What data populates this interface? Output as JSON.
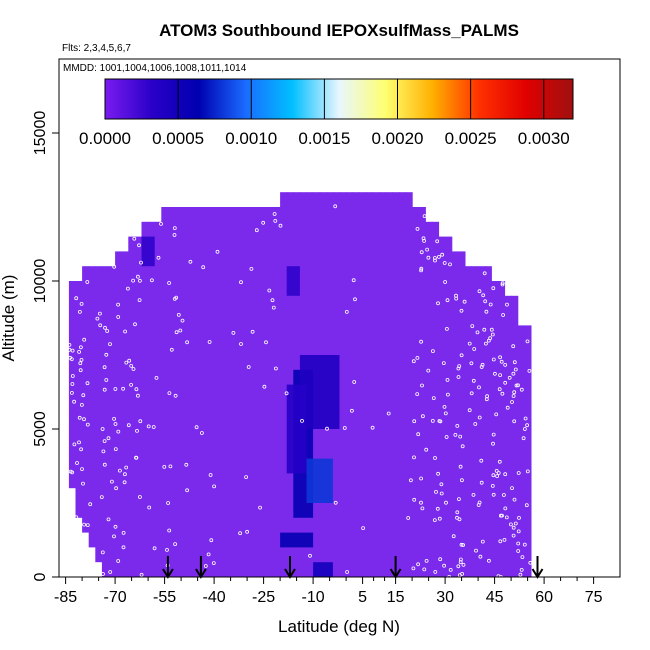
{
  "chart_data": {
    "type": "heatmap",
    "title": "ATOM3 Southbound IEPOXsulfMass_PALMS",
    "subtitle_flights": "Flts: 2,3,4,5,6,7",
    "subtitle_dates": "MMDD: 1001,1004,1006,1008,1011,1014",
    "xlabel": "Latitude (deg N)",
    "ylabel": "Altitude (m)",
    "xlim": [
      -87,
      83
    ],
    "ylim": [
      0,
      17500
    ],
    "x_ticks": [
      -85,
      -70,
      -55,
      -40,
      -25,
      -10,
      5,
      15,
      30,
      45,
      60,
      75
    ],
    "x_tick_labels": [
      "-85",
      "-70",
      "-55",
      "-40",
      "-25",
      "-10",
      "5",
      "15",
      "30",
      "45",
      "60",
      "75"
    ],
    "y_ticks": [
      0,
      5000,
      10000,
      15000
    ],
    "y_tick_labels": [
      "0",
      "5000",
      "10000",
      "15000"
    ],
    "colorbar": {
      "range": [
        0,
        0.0032
      ],
      "ticks": [
        0,
        0.0005,
        0.001,
        0.0015,
        0.002,
        0.0025,
        0.003
      ],
      "tick_labels": [
        "0.0000",
        "0.0005",
        "0.0010",
        "0.0015",
        "0.0020",
        "0.0025",
        "0.0030"
      ],
      "colors": [
        "#7a1cf0",
        "#2a00c8",
        "#0000b0",
        "#1a6bff",
        "#00bfff",
        "#e8f6ff",
        "#ffff70",
        "#ffb000",
        "#ff3000",
        "#e00000",
        "#a01010"
      ],
      "placement": "top, inside plot"
    },
    "background_value_color": "#7b2aec",
    "column_top_altitudes": [
      {
        "lat_from": -84,
        "lat_to": -80,
        "alt_top": 10000
      },
      {
        "lat_from": -80,
        "lat_to": -74,
        "alt_top": 10500
      },
      {
        "lat_from": -74,
        "lat_to": -70,
        "alt_top": 10500
      },
      {
        "lat_from": -70,
        "lat_to": -66,
        "alt_top": 11000
      },
      {
        "lat_from": -66,
        "lat_to": -62,
        "alt_top": 11500
      },
      {
        "lat_from": -62,
        "lat_to": -56,
        "alt_top": 12000
      },
      {
        "lat_from": -56,
        "lat_to": -50,
        "alt_top": 12500
      },
      {
        "lat_from": -50,
        "lat_to": -30,
        "alt_top": 12500
      },
      {
        "lat_from": -30,
        "lat_to": -20,
        "alt_top": 12500
      },
      {
        "lat_from": -20,
        "lat_to": 20,
        "alt_top": 13000
      },
      {
        "lat_from": 20,
        "lat_to": 24,
        "alt_top": 12500
      },
      {
        "lat_from": 24,
        "lat_to": 28,
        "alt_top": 12000
      },
      {
        "lat_from": 28,
        "lat_to": 32,
        "alt_top": 11500
      },
      {
        "lat_from": 32,
        "lat_to": 36,
        "alt_top": 11000
      },
      {
        "lat_from": 36,
        "lat_to": 40,
        "alt_top": 10500
      },
      {
        "lat_from": 40,
        "lat_to": 44,
        "alt_top": 10500
      },
      {
        "lat_from": 44,
        "lat_to": 48,
        "alt_top": 10000
      },
      {
        "lat_from": 48,
        "lat_to": 52,
        "alt_top": 9500
      },
      {
        "lat_from": 52,
        "lat_to": 56,
        "alt_top": 8500
      }
    ],
    "column_bottom_altitudes": [
      {
        "lat_from": -84,
        "lat_to": -82,
        "alt_bottom": 3000
      },
      {
        "lat_from": -82,
        "lat_to": -80,
        "alt_bottom": 2000
      },
      {
        "lat_from": -80,
        "lat_to": -78,
        "alt_bottom": 1500
      },
      {
        "lat_from": -78,
        "lat_to": -76,
        "alt_bottom": 1000
      },
      {
        "lat_from": -76,
        "lat_to": -74,
        "alt_bottom": 500
      }
    ],
    "high_value_cells": [
      {
        "lat": [
          -16,
          -10
        ],
        "alt": [
          7000,
          2000
        ],
        "value": 0.0006
      },
      {
        "lat": [
          -12,
          -4
        ],
        "alt": [
          4000,
          2500
        ],
        "value": 0.0008
      },
      {
        "lat": [
          -14,
          -2
        ],
        "alt": [
          7500,
          5000
        ],
        "value": 0.0004
      },
      {
        "lat": [
          -18,
          -12
        ],
        "alt": [
          6500,
          3500
        ],
        "value": 0.00035
      },
      {
        "lat": [
          -18,
          -14
        ],
        "alt": [
          10500,
          9500
        ],
        "value": 0.0003
      },
      {
        "lat": [
          -62,
          -58
        ],
        "alt": [
          11500,
          10500
        ],
        "value": 0.0003
      },
      {
        "lat": [
          -20,
          -10
        ],
        "alt": [
          1500,
          1000
        ],
        "value": 0.0006
      },
      {
        "lat": [
          -10,
          -4
        ],
        "alt": [
          500,
          0
        ],
        "value": 0.0005
      }
    ],
    "sample_points_color": "#ffffff",
    "marker_arrows_lat": [
      -54,
      -44,
      -17,
      15,
      58
    ]
  }
}
